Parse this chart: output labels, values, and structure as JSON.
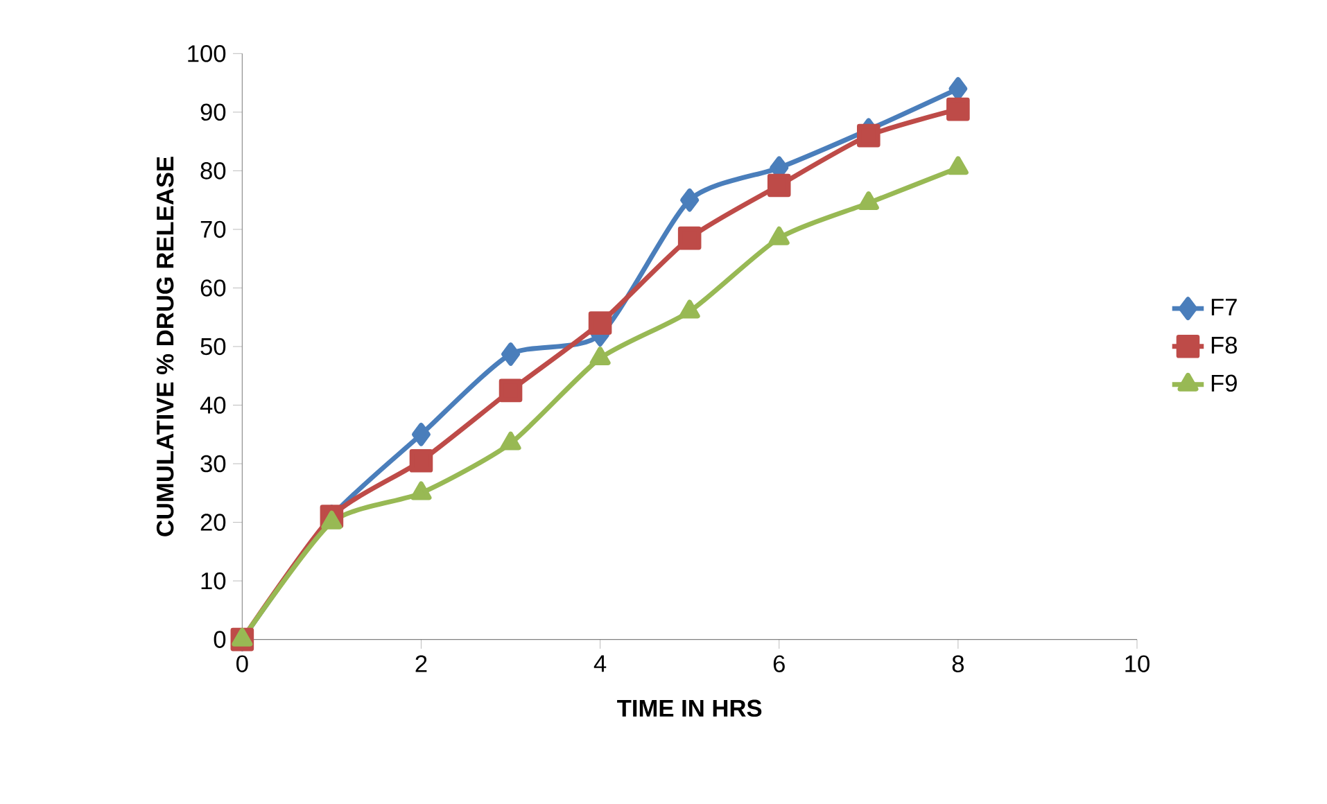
{
  "chart_data": {
    "type": "line",
    "xlabel": "TIME IN HRS",
    "ylabel": "CUMULATIVE % DRUG RELEASE",
    "x": [
      0,
      1,
      2,
      3,
      4,
      5,
      6,
      7,
      8
    ],
    "xlim": [
      0,
      10
    ],
    "xticks": [
      0,
      2,
      4,
      6,
      8,
      10
    ],
    "ylim": [
      0,
      100
    ],
    "yticks": [
      0,
      10,
      20,
      30,
      40,
      50,
      60,
      70,
      80,
      90,
      100
    ],
    "grid": false,
    "legend": "right",
    "series": [
      {
        "name": "F7",
        "color": "#4a7ebb",
        "marker": "diamond",
        "values": [
          0,
          21,
          35,
          48.7,
          52,
          75,
          80.5,
          87,
          94
        ]
      },
      {
        "name": "F8",
        "color": "#be4b48",
        "marker": "square",
        "values": [
          0,
          21,
          30.5,
          42.5,
          54,
          68.5,
          77.5,
          86,
          90.5
        ]
      },
      {
        "name": "F9",
        "color": "#98b954",
        "marker": "triangle",
        "values": [
          0,
          20,
          25,
          33.5,
          48,
          56,
          68.5,
          74.5,
          80.5
        ]
      }
    ]
  }
}
